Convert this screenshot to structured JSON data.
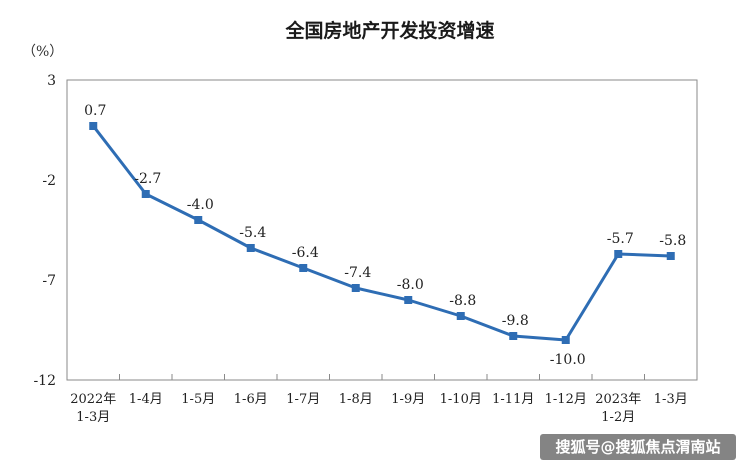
{
  "chart_data": {
    "type": "line",
    "title": "全国房地产开发投资增速",
    "ylabel": "（%）",
    "xlabel": "",
    "ylim": [
      -12,
      3
    ],
    "yticks": [
      3,
      -2,
      -7,
      -12
    ],
    "grid": false,
    "line_color": "#2e6db4",
    "categories": [
      "2022年\n1-3月",
      "1-4月",
      "1-5月",
      "1-6月",
      "1-7月",
      "1-8月",
      "1-9月",
      "1-10月",
      "1-11月",
      "1-12月",
      "2023年\n1-2月",
      "1-3月"
    ],
    "series": [
      {
        "values": [
          0.7,
          -2.7,
          -4.0,
          -5.4,
          -6.4,
          -7.4,
          -8.0,
          -8.8,
          -9.8,
          -10.0,
          -5.7,
          -5.8
        ],
        "labels": [
          "0.7",
          "-2.7",
          "-4.0",
          "-5.4",
          "-6.4",
          "-7.4",
          "-8.0",
          "-8.8",
          "-9.8",
          "-10.0",
          "-5.7",
          "-5.8"
        ]
      }
    ]
  },
  "watermark": {
    "text": "搜狐号@搜狐焦点渭南站",
    "bg_color": "#6e6e6e"
  }
}
